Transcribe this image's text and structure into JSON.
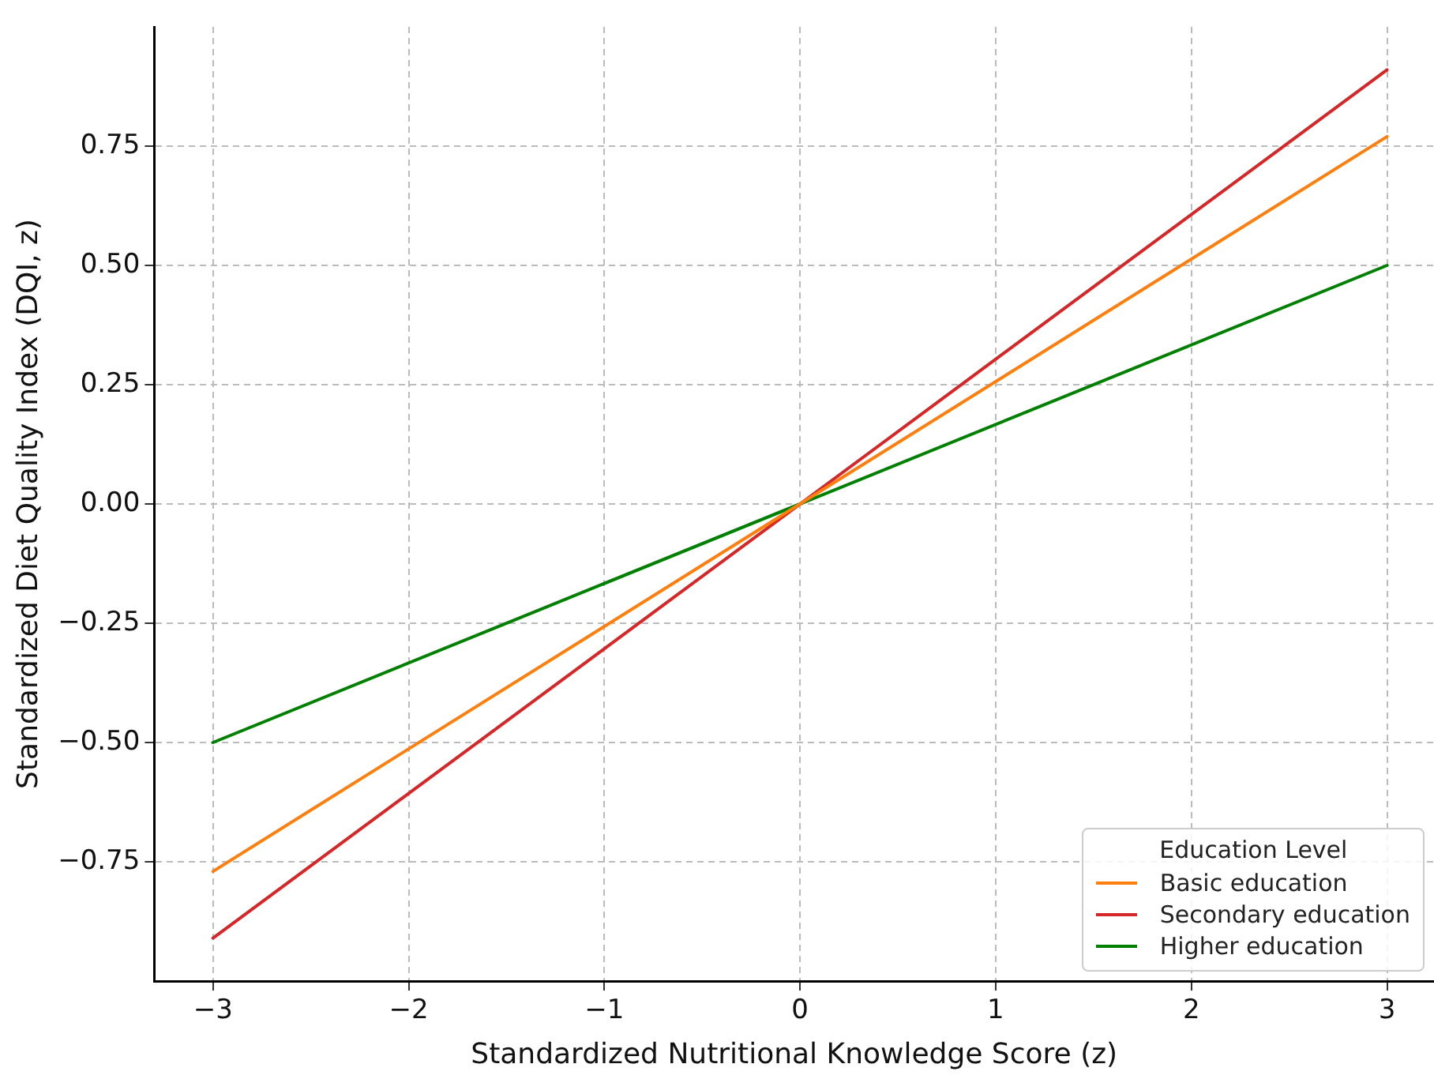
{
  "chart_data": {
    "type": "line",
    "xlabel": "Standardized Nutritional Knowledge Score (z)",
    "ylabel": "Standardized Diet Quality Index (DQI, z)",
    "legend_title": "Education Level",
    "legend": "bottom right",
    "grid": true,
    "marker": "none",
    "line_style": "solid",
    "x": [
      -3,
      3
    ],
    "series": [
      {
        "name": "Basic education",
        "color": "#ff7f0e",
        "values": [
          -0.77,
          0.77
        ]
      },
      {
        "name": "Secondary education",
        "color": "#d62728",
        "values": [
          -0.91,
          0.91
        ]
      },
      {
        "name": "Higher education",
        "color": "#008000",
        "values": [
          -0.5,
          0.5
        ]
      }
    ],
    "xlim": [
      -3.3,
      3.24
    ],
    "ylim": [
      -1.0,
      1.0
    ],
    "xticks": [
      {
        "value": -3,
        "label": "−3"
      },
      {
        "value": -2,
        "label": "−2"
      },
      {
        "value": -1,
        "label": "−1"
      },
      0,
      1,
      2,
      3
    ],
    "yticks": [
      {
        "value": -0.75,
        "label": "−0.75"
      },
      {
        "value": -0.5,
        "label": "−0.50"
      },
      {
        "value": -0.25,
        "label": "−0.25"
      },
      {
        "value": 0,
        "label": "0.00"
      },
      {
        "value": 0.25,
        "label": "0.25"
      },
      {
        "value": 0.5,
        "label": "0.50"
      },
      {
        "value": 0.75,
        "label": "0.75"
      }
    ]
  }
}
